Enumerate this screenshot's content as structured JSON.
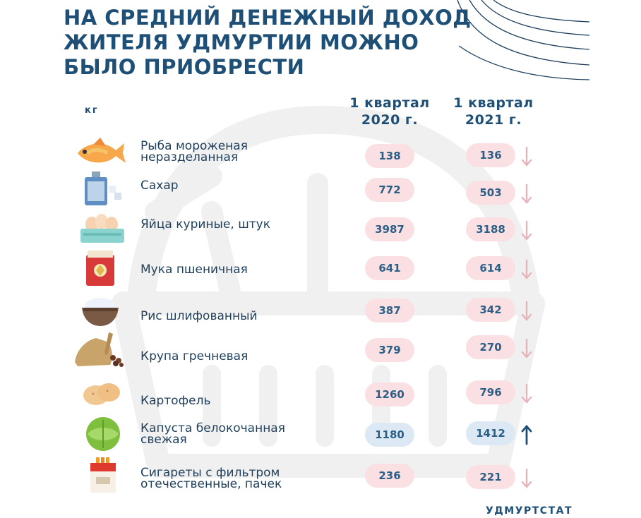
{
  "title_lines": [
    "НА СРЕДНИЙ ДЕНЕЖНЫЙ ДОХОД",
    "ЖИТЕЛЯ УДМУРТИИ МОЖНО",
    "БЫЛО ПРИОБРЕСТИ"
  ],
  "unit_label": "кг",
  "source": "УДМУРТСТАТ",
  "colors": {
    "title": "#1e4f76",
    "decrease_pill": "#fbe0e3",
    "increase_pill": "#dce9f4",
    "decrease_arrow": "#e8b4b9",
    "increase_arrow": "#1e4f76"
  },
  "chart_data": {
    "type": "table",
    "columns": [
      {
        "line1": "1 квартал",
        "line2": "2020 г."
      },
      {
        "line1": "1 квартал",
        "line2": "2021 г."
      }
    ],
    "rows": [
      {
        "label_lines": [
          "Рыба мороженая",
          "неразделанная"
        ],
        "icon": "fish-icon",
        "q1_2020": 138,
        "q1_2021": 136,
        "trend": "down"
      },
      {
        "label_lines": [
          "Сахар"
        ],
        "icon": "sugar-jar-icon",
        "q1_2020": 772,
        "q1_2021": 503,
        "trend": "down"
      },
      {
        "label_lines": [
          "Яйца куриные,  штук"
        ],
        "icon": "eggs-tray-icon",
        "q1_2020": 3987,
        "q1_2021": 3188,
        "trend": "down"
      },
      {
        "label_lines": [
          "Мука пшеничная"
        ],
        "icon": "flour-bag-icon",
        "q1_2020": 641,
        "q1_2021": 614,
        "trend": "down"
      },
      {
        "label_lines": [
          "Рис шлифованный"
        ],
        "icon": "rice-bowl-icon",
        "q1_2020": 387,
        "q1_2021": 342,
        "trend": "down"
      },
      {
        "label_lines": [
          "Крупа гречневая"
        ],
        "icon": "buckwheat-sack-icon",
        "q1_2020": 379,
        "q1_2021": 270,
        "trend": "down"
      },
      {
        "label_lines": [
          "Картофель"
        ],
        "icon": "potato-icon",
        "q1_2020": 1260,
        "q1_2021": 796,
        "trend": "down"
      },
      {
        "label_lines": [
          "Капуста белокочанная",
          "свежая"
        ],
        "icon": "cabbage-icon",
        "q1_2020": 1180,
        "q1_2021": 1412,
        "trend": "up"
      },
      {
        "label_lines": [
          "Сигареты с фильтром",
          "отечественные, пачек"
        ],
        "icon": "cigarette-pack-icon",
        "q1_2020": 236,
        "q1_2021": 221,
        "trend": "down"
      }
    ]
  }
}
